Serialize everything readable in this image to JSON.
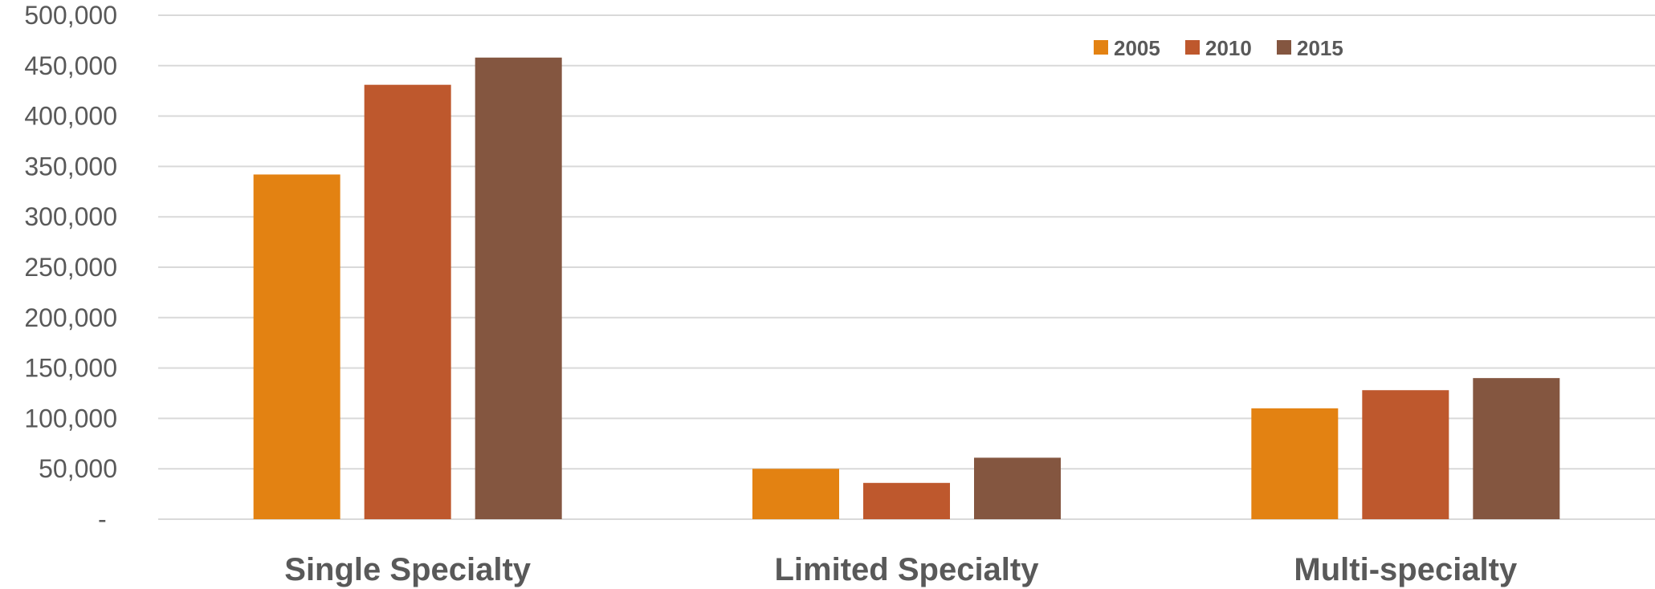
{
  "chart_data": {
    "type": "bar",
    "categories": [
      "Single Specialty",
      "Limited Specialty",
      "Multi-specialty"
    ],
    "series": [
      {
        "name": "2005",
        "color": "#E38212",
        "values": [
          342000,
          50000,
          110000
        ]
      },
      {
        "name": "2010",
        "color": "#BE582D",
        "values": [
          431000,
          36000,
          128000
        ]
      },
      {
        "name": "2015",
        "color": "#845640",
        "values": [
          458000,
          61000,
          140000
        ]
      }
    ],
    "y_ticks": [
      "-",
      "50,000",
      "100,000",
      "150,000",
      "200,000",
      "250,000",
      "300,000",
      "350,000",
      "400,000",
      "450,000",
      "500,000"
    ],
    "ylim": [
      0,
      500000
    ],
    "grid": true,
    "legend_position": "top-right",
    "title": "",
    "xlabel": "",
    "ylabel": ""
  }
}
